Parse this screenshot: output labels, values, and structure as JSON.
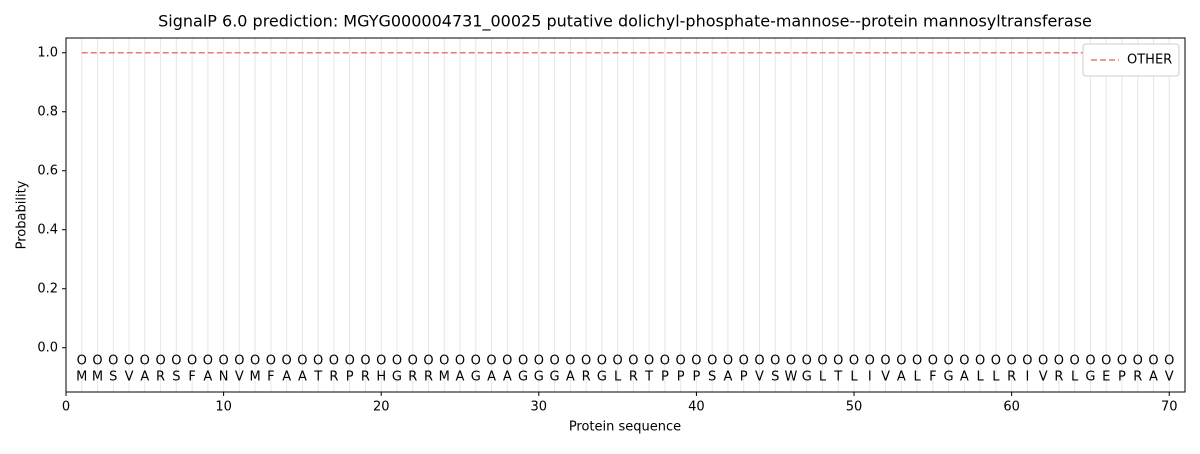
{
  "chart_data": {
    "type": "line",
    "title": "SignalP 6.0 prediction: MGYG000004731_00025 putative dolichyl-phosphate-mannose--protein mannosyltransferase",
    "xlabel": "Protein sequence",
    "ylabel": "Probability",
    "x": [
      1,
      2,
      3,
      4,
      5,
      6,
      7,
      8,
      9,
      10,
      11,
      12,
      13,
      14,
      15,
      16,
      17,
      18,
      19,
      20,
      21,
      22,
      23,
      24,
      25,
      26,
      27,
      28,
      29,
      30,
      31,
      32,
      33,
      34,
      35,
      36,
      37,
      38,
      39,
      40,
      41,
      42,
      43,
      44,
      45,
      46,
      47,
      48,
      49,
      50,
      51,
      52,
      53,
      54,
      55,
      56,
      57,
      58,
      59,
      60,
      61,
      62,
      63,
      64,
      65,
      66,
      67,
      68,
      69,
      70
    ],
    "residues": [
      "M",
      "M",
      "S",
      "V",
      "A",
      "R",
      "S",
      "F",
      "A",
      "N",
      "V",
      "M",
      "F",
      "A",
      "A",
      "T",
      "R",
      "P",
      "R",
      "H",
      "G",
      "R",
      "R",
      "M",
      "A",
      "G",
      "A",
      "A",
      "G",
      "G",
      "G",
      "A",
      "R",
      "G",
      "L",
      "R",
      "T",
      "P",
      "P",
      "P",
      "S",
      "A",
      "P",
      "V",
      "S",
      "W",
      "G",
      "L",
      "T",
      "L",
      "I",
      "V",
      "A",
      "L",
      "F",
      "G",
      "A",
      "L",
      "L",
      "R",
      "I",
      "V",
      "R",
      "L",
      "G",
      "E",
      "P",
      "R",
      "A",
      "V"
    ],
    "region_labels": [
      "O",
      "O",
      "O",
      "O",
      "O",
      "O",
      "O",
      "O",
      "O",
      "O",
      "O",
      "O",
      "O",
      "O",
      "O",
      "O",
      "O",
      "O",
      "O",
      "O",
      "O",
      "O",
      "O",
      "O",
      "O",
      "O",
      "O",
      "O",
      "O",
      "O",
      "O",
      "O",
      "O",
      "O",
      "O",
      "O",
      "O",
      "O",
      "O",
      "O",
      "O",
      "O",
      "O",
      "O",
      "O",
      "O",
      "O",
      "O",
      "O",
      "O",
      "O",
      "O",
      "O",
      "O",
      "O",
      "O",
      "O",
      "O",
      "O",
      "O",
      "O",
      "O",
      "O",
      "O",
      "O",
      "O",
      "O",
      "O",
      "O",
      "O"
    ],
    "series": [
      {
        "name": "OTHER",
        "color": "#e8767a",
        "values": [
          1,
          1,
          1,
          1,
          1,
          1,
          1,
          1,
          1,
          1,
          1,
          1,
          1,
          1,
          1,
          1,
          1,
          1,
          1,
          1,
          1,
          1,
          1,
          1,
          1,
          1,
          1,
          1,
          1,
          1,
          1,
          1,
          1,
          1,
          1,
          1,
          1,
          1,
          1,
          1,
          1,
          1,
          1,
          1,
          1,
          1,
          1,
          1,
          1,
          1,
          1,
          1,
          1,
          1,
          1,
          1,
          1,
          1,
          1,
          1,
          1,
          1,
          1,
          1,
          1,
          1,
          1,
          1,
          1,
          1
        ]
      }
    ],
    "xlim": [
      0,
      71
    ],
    "ylim": [
      -0.15,
      1.05
    ],
    "xticks": [
      0,
      10,
      20,
      30,
      40,
      50,
      60,
      70
    ],
    "yticks": [
      {
        "value": 0,
        "label": "0.0"
      },
      {
        "value": 0.2,
        "label": "0.2"
      },
      {
        "value": 0.4,
        "label": "0.4"
      },
      {
        "value": 0.6,
        "label": "0.6"
      },
      {
        "value": 0.8,
        "label": "0.8"
      },
      {
        "value": 1,
        "label": "1.0"
      }
    ],
    "legend": "upper right"
  }
}
